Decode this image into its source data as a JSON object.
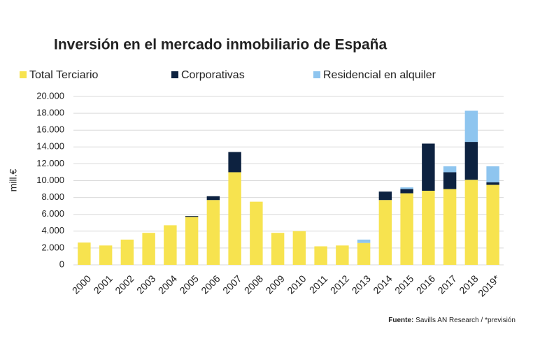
{
  "chart_data": {
    "type": "stacked_bar",
    "title": "Inversión en el mercado inmobiliario de España",
    "y_label": "mill.€",
    "source": {
      "label": "Fuente:",
      "text": "Savills AN Research / *previsión"
    },
    "categories": [
      "2000",
      "2001",
      "2002",
      "2003",
      "2004",
      "2005",
      "2006",
      "2007",
      "2008",
      "2009",
      "2010",
      "2011",
      "2012",
      "2013",
      "2014",
      "2015",
      "2016",
      "2017",
      "2018",
      "2019*"
    ],
    "series": [
      {
        "name": "Total Terciario",
        "color": "#f7e34f",
        "values": [
          2650,
          2300,
          3000,
          3800,
          4700,
          5700,
          7700,
          11000,
          7500,
          3800,
          4000,
          2200,
          2300,
          2600,
          7700,
          8500,
          8800,
          9000,
          10100,
          9500
        ]
      },
      {
        "name": "Corporativas",
        "color": "#0d2240",
        "values": [
          null,
          null,
          null,
          null,
          null,
          100,
          450,
          2400,
          null,
          null,
          null,
          null,
          null,
          null,
          1000,
          500,
          5600,
          2000,
          4500,
          300
        ]
      },
      {
        "name": "Residencial en alquiler",
        "color": "#8ec5ef",
        "values": [
          null,
          null,
          null,
          null,
          null,
          null,
          null,
          null,
          null,
          null,
          null,
          null,
          null,
          400,
          null,
          200,
          null,
          700,
          3700,
          1900
        ]
      }
    ],
    "ylim": [
      0,
      20000
    ],
    "yticks": [
      0,
      {
        "value": 2000,
        "label": "2.000"
      },
      {
        "value": 4000,
        "label": "4.000"
      },
      {
        "value": 6000,
        "label": "6.000"
      },
      {
        "value": 8000,
        "label": "8.000"
      },
      {
        "value": 10000,
        "label": "10.000"
      },
      {
        "value": 12000,
        "label": "12.000"
      },
      {
        "value": 14000,
        "label": "14.000"
      },
      {
        "value": 16000,
        "label": "16.000"
      },
      {
        "value": 18000,
        "label": "18.000"
      },
      {
        "value": 20000,
        "label": "20.000"
      }
    ],
    "grid": true
  }
}
